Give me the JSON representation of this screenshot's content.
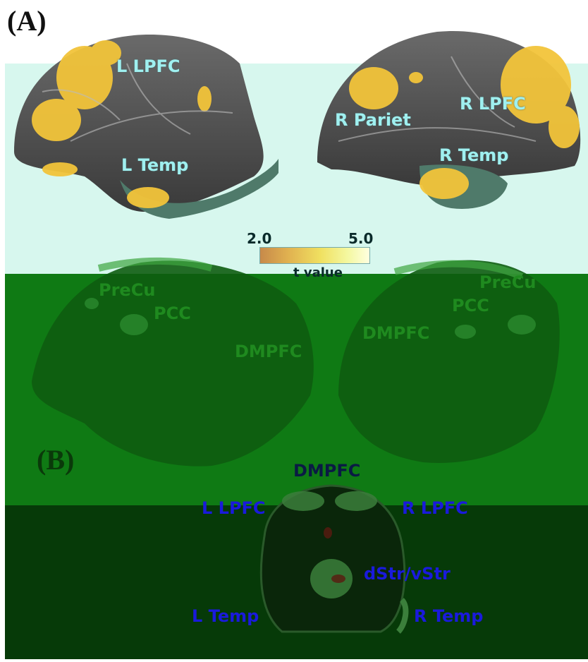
{
  "panel_a": {
    "label": "(A)",
    "lateral_labels": {
      "l_lpfc": "L LPFC",
      "l_temp": "L Temp",
      "r_pariet": "R Pariet",
      "r_lpfc": "R LPFC",
      "r_temp": "R Temp"
    },
    "colorbar": {
      "min": "2.0",
      "max": "5.0",
      "title": "t value"
    },
    "medial_labels": {
      "l_precu": "PreCu",
      "l_pcc": "PCC",
      "l_dmpfc": "DMPFC",
      "r_precu": "PreCu",
      "r_pcc": "PCC",
      "r_dmpfc": "DMPFC"
    }
  },
  "panel_b": {
    "label": "(B)",
    "labels": {
      "dmpfc": "DMPFC",
      "l_lpfc": "L LPFC",
      "r_lpfc": "R LPFC",
      "dstr_vstr": "dStr/vStr",
      "l_temp": "L Temp",
      "r_temp": "R Temp"
    }
  },
  "colors": {
    "band_top_light": "#d7f7ee",
    "band_mid_green": "#0f7a14",
    "band_dark_green": "#063a08",
    "cortex_gray": "#555555",
    "activation_yellow": "#f2d43a"
  }
}
